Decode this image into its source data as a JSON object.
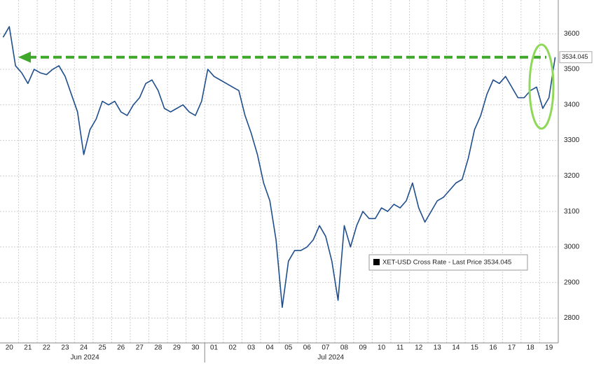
{
  "chart_data": {
    "type": "line",
    "categories": [
      "20",
      null,
      null,
      "21",
      null,
      null,
      "22",
      null,
      null,
      "23",
      null,
      null,
      "24",
      null,
      null,
      "25",
      null,
      null,
      "26",
      null,
      null,
      "27",
      null,
      null,
      "28",
      null,
      null,
      "29",
      null,
      null,
      "30",
      null,
      null,
      "01",
      null,
      null,
      "02",
      null,
      null,
      "03",
      null,
      null,
      "04",
      null,
      null,
      "05",
      null,
      null,
      "06",
      null,
      null,
      "07",
      null,
      null,
      "08",
      null,
      null,
      "09",
      null,
      null,
      "10",
      null,
      null,
      "11",
      null,
      null,
      "12",
      null,
      null,
      "13",
      null,
      null,
      "14",
      null,
      null,
      "15",
      null,
      null,
      "16",
      null,
      null,
      "17",
      null,
      null,
      "18",
      null,
      null,
      "19",
      null,
      null
    ],
    "month_labels": [
      "Jun 2024",
      "Jul 2024"
    ],
    "series": [
      {
        "name": "XET-USD Cross Rate - Last Price 3534.045",
        "color": "#1f4e8c",
        "values": [
          3590,
          3620,
          3510,
          3490,
          3460,
          3500,
          3490,
          3485,
          3500,
          3510,
          3480,
          3430,
          3380,
          3260,
          3330,
          3360,
          3410,
          3400,
          3410,
          3380,
          3370,
          3400,
          3420,
          3460,
          3470,
          3440,
          3390,
          3380,
          3390,
          3400,
          3380,
          3370,
          3410,
          3500,
          3480,
          3470,
          3460,
          3450,
          3440,
          3370,
          3320,
          3260,
          3180,
          3130,
          3020,
          2830,
          2960,
          2990,
          2990,
          3000,
          3020,
          3060,
          3030,
          2960,
          2850,
          3060,
          3000,
          3060,
          3100,
          3080,
          3080,
          3110,
          3100,
          3120,
          3110,
          3130,
          3180,
          3110,
          3070,
          3100,
          3130,
          3140,
          3160,
          3180,
          3190,
          3250,
          3330,
          3370,
          3430,
          3470,
          3460,
          3480,
          3450,
          3420,
          3420,
          3440,
          3450,
          3390,
          3420,
          3534.045
        ]
      }
    ],
    "last_price": 3534.045,
    "ylim": [
      2730,
      3695
    ],
    "yticks": [
      2800,
      2900,
      3000,
      3100,
      3200,
      3300,
      3400,
      3500,
      3600
    ],
    "grid": true,
    "annotation_color": "#3fa82a"
  }
}
